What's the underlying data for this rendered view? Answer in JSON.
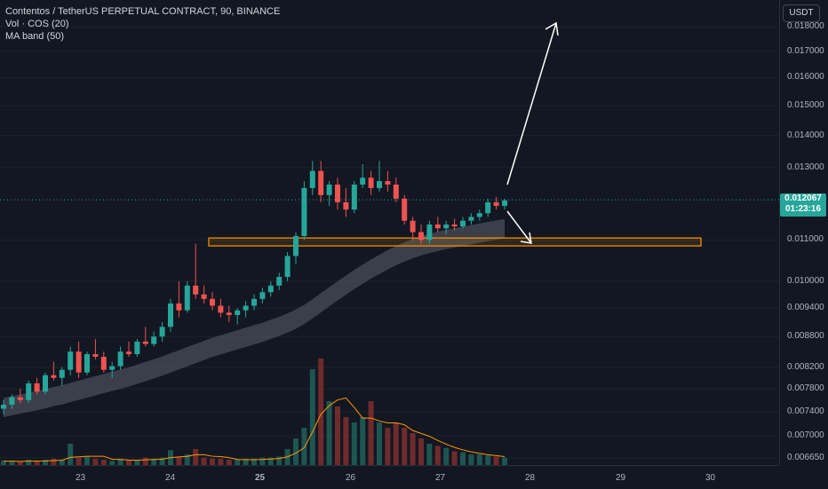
{
  "legend": {
    "title": "Contentos / TetherUS PERPETUAL CONTRACT, 90, BINANCE",
    "vol": "Vol · COS (20)",
    "ma": "MA band (50)"
  },
  "price_axis": {
    "currency": "USDT",
    "last_price": "0.012067",
    "countdown": "01:23:16",
    "ticks": [
      "0.018000",
      "0.017000",
      "0.016000",
      "0.015000",
      "0.014000",
      "0.013000",
      "0.011000",
      "0.010000",
      "0.009400",
      "0.008800",
      "0.008200",
      "0.007800",
      "0.007400",
      "0.007000",
      "0.006650"
    ]
  },
  "time_axis": {
    "ticks": [
      "23",
      "24",
      "25",
      "26",
      "27",
      "28",
      "29",
      "30"
    ]
  },
  "colors": {
    "background": "#131722",
    "up": "#26a69a",
    "down": "#ef5350",
    "band": "#5d606b",
    "zone_stroke": "#ff9800",
    "volume_ma": "#ff9800",
    "arrow": "#ffffff"
  },
  "chart_data": {
    "type": "candlestick",
    "symbol": "COSUSDT.P",
    "interval": "90",
    "y_scale": "log",
    "x_ticks": [
      "23",
      "24",
      "25",
      "26",
      "27",
      "28",
      "29",
      "30"
    ],
    "y_ticks": [
      0.018,
      0.017,
      0.016,
      0.015,
      0.014,
      0.013,
      0.011,
      0.01,
      0.0094,
      0.0088,
      0.0082,
      0.0078,
      0.0074,
      0.007,
      0.00665
    ],
    "last_price": 0.012067,
    "candles": [
      [
        0.00745,
        0.0076,
        0.00735,
        0.00752
      ],
      [
        0.00752,
        0.0077,
        0.00745,
        0.00765
      ],
      [
        0.00765,
        0.0078,
        0.00755,
        0.0076
      ],
      [
        0.0076,
        0.00795,
        0.00755,
        0.0079
      ],
      [
        0.0079,
        0.008,
        0.0077,
        0.00775
      ],
      [
        0.00775,
        0.0081,
        0.0077,
        0.00805
      ],
      [
        0.00805,
        0.0083,
        0.00795,
        0.008
      ],
      [
        0.008,
        0.0082,
        0.00785,
        0.00815
      ],
      [
        0.00815,
        0.0086,
        0.00805,
        0.0085
      ],
      [
        0.0085,
        0.0087,
        0.008,
        0.0081
      ],
      [
        0.0081,
        0.0085,
        0.00805,
        0.00845
      ],
      [
        0.00845,
        0.00875,
        0.00835,
        0.0084
      ],
      [
        0.0084,
        0.0085,
        0.0081,
        0.00815
      ],
      [
        0.00815,
        0.0083,
        0.008,
        0.00822
      ],
      [
        0.00822,
        0.0086,
        0.00815,
        0.0085
      ],
      [
        0.0085,
        0.0087,
        0.0084,
        0.00845
      ],
      [
        0.00845,
        0.00875,
        0.0084,
        0.0087
      ],
      [
        0.0087,
        0.009,
        0.0086,
        0.00865
      ],
      [
        0.00865,
        0.0089,
        0.0086,
        0.0088
      ],
      [
        0.0088,
        0.0091,
        0.0087,
        0.009
      ],
      [
        0.009,
        0.0096,
        0.0089,
        0.0095
      ],
      [
        0.0095,
        0.01,
        0.0092,
        0.00935
      ],
      [
        0.00935,
        0.01,
        0.0093,
        0.0099
      ],
      [
        0.0099,
        0.0109,
        0.0096,
        0.0097
      ],
      [
        0.0097,
        0.0099,
        0.0095,
        0.0096
      ],
      [
        0.0096,
        0.00975,
        0.00935,
        0.00945
      ],
      [
        0.00945,
        0.0096,
        0.0092,
        0.0093
      ],
      [
        0.0093,
        0.00945,
        0.0091,
        0.00925
      ],
      [
        0.00925,
        0.0094,
        0.00905,
        0.00935
      ],
      [
        0.00935,
        0.00955,
        0.0092,
        0.00945
      ],
      [
        0.00945,
        0.0097,
        0.00935,
        0.0096
      ],
      [
        0.0096,
        0.00985,
        0.0095,
        0.00975
      ],
      [
        0.00975,
        0.01,
        0.00965,
        0.0099
      ],
      [
        0.0099,
        0.0102,
        0.0098,
        0.0101
      ],
      [
        0.0101,
        0.0107,
        0.01,
        0.0106
      ],
      [
        0.0106,
        0.0112,
        0.0104,
        0.0111
      ],
      [
        0.0111,
        0.0126,
        0.011,
        0.0124
      ],
      [
        0.0124,
        0.0132,
        0.0122,
        0.0129
      ],
      [
        0.0129,
        0.0132,
        0.012,
        0.0122
      ],
      [
        0.0122,
        0.0126,
        0.0119,
        0.0125
      ],
      [
        0.0125,
        0.0127,
        0.0118,
        0.012
      ],
      [
        0.012,
        0.0124,
        0.0116,
        0.0118
      ],
      [
        0.0118,
        0.0126,
        0.0117,
        0.0125
      ],
      [
        0.0125,
        0.0131,
        0.0124,
        0.0127
      ],
      [
        0.0127,
        0.0129,
        0.0122,
        0.0124
      ],
      [
        0.0124,
        0.0132,
        0.0123,
        0.0126
      ],
      [
        0.0126,
        0.0129,
        0.0123,
        0.0125
      ],
      [
        0.0125,
        0.0127,
        0.012,
        0.0121
      ],
      [
        0.0121,
        0.0122,
        0.0114,
        0.0115
      ],
      [
        0.0115,
        0.0116,
        0.011,
        0.0112
      ],
      [
        0.0112,
        0.0114,
        0.0109,
        0.011
      ],
      [
        0.011,
        0.0115,
        0.0109,
        0.0114
      ],
      [
        0.0114,
        0.0116,
        0.0112,
        0.0113
      ],
      [
        0.0113,
        0.0115,
        0.01115,
        0.0114
      ],
      [
        0.0114,
        0.01155,
        0.01125,
        0.01135
      ],
      [
        0.01135,
        0.0116,
        0.0113,
        0.0115
      ],
      [
        0.0115,
        0.0117,
        0.0114,
        0.0116
      ],
      [
        0.0116,
        0.0118,
        0.0115,
        0.0117
      ],
      [
        0.0117,
        0.0121,
        0.0116,
        0.012
      ],
      [
        0.012,
        0.01215,
        0.0118,
        0.0119
      ],
      [
        0.0119,
        0.0121,
        0.0118,
        0.01205
      ]
    ],
    "volume": [
      0.04,
      0.04,
      0.03,
      0.05,
      0.04,
      0.05,
      0.06,
      0.05,
      0.2,
      0.07,
      0.08,
      0.06,
      0.05,
      0.04,
      0.06,
      0.05,
      0.05,
      0.07,
      0.06,
      0.07,
      0.14,
      0.08,
      0.1,
      0.15,
      0.07,
      0.06,
      0.06,
      0.05,
      0.05,
      0.06,
      0.06,
      0.07,
      0.07,
      0.08,
      0.15,
      0.25,
      0.35,
      0.9,
      1.0,
      0.6,
      0.55,
      0.45,
      0.4,
      0.45,
      0.6,
      0.4,
      0.35,
      0.4,
      0.35,
      0.3,
      0.25,
      0.2,
      0.18,
      0.16,
      0.13,
      0.12,
      0.1,
      0.1,
      0.09,
      0.08,
      0.07
    ],
    "ma_band": [
      0.00738,
      0.00741,
      0.00744,
      0.00747,
      0.0075,
      0.00753,
      0.00757,
      0.0076,
      0.00764,
      0.00768,
      0.00772,
      0.00776,
      0.0078,
      0.00784,
      0.00788,
      0.00792,
      0.00797,
      0.00802,
      0.00807,
      0.00812,
      0.00818,
      0.00824,
      0.0083,
      0.00836,
      0.00842,
      0.00848,
      0.00853,
      0.00858,
      0.00863,
      0.00868,
      0.00873,
      0.00878,
      0.00884,
      0.0089,
      0.00897,
      0.00905,
      0.00915,
      0.00927,
      0.0094,
      0.00953,
      0.00966,
      0.00979,
      0.00992,
      0.01004,
      0.01016,
      0.01027,
      0.01038,
      0.01048,
      0.01057,
      0.01065,
      0.01072,
      0.01078,
      0.01083,
      0.01088,
      0.01092,
      0.01096,
      0.011,
      0.01104,
      0.01108,
      0.01112,
      0.01115
    ],
    "zone": {
      "low": 0.01085,
      "high": 0.01105
    }
  }
}
